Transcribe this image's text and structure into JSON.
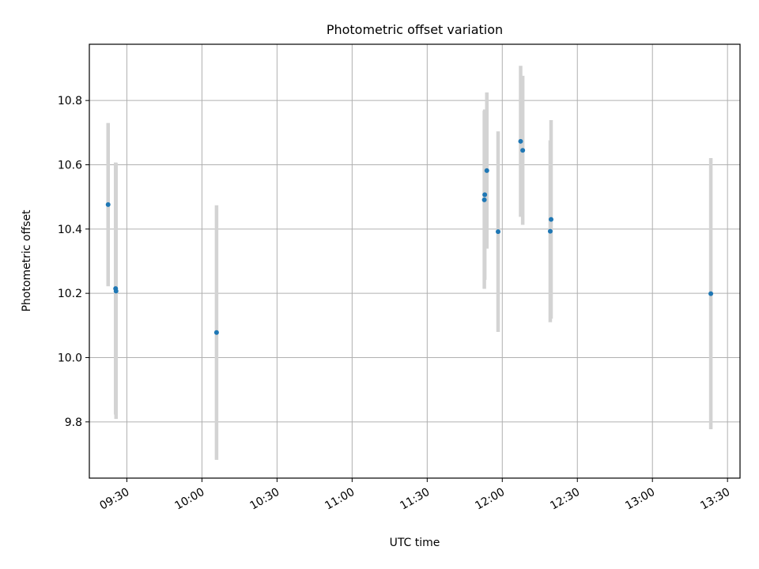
{
  "chart_data": {
    "type": "scatter",
    "title": "Photometric offset variation",
    "xlabel": "UTC time",
    "ylabel": "Photometric offset",
    "x_axis_kind": "time",
    "xlim": [
      "09:15",
      "13:35"
    ],
    "ylim": [
      9.625,
      10.975
    ],
    "grid": true,
    "x_ticks": [
      "09:30",
      "10:00",
      "10:30",
      "11:00",
      "11:30",
      "12:00",
      "12:30",
      "13:00",
      "13:30"
    ],
    "y_ticks": [
      9.8,
      10.0,
      10.2,
      10.4,
      10.6,
      10.8
    ],
    "y_tick_labels": [
      "9.8",
      "10.0",
      "10.2",
      "10.4",
      "10.6",
      "10.8"
    ],
    "colors": {
      "points": "#1f77b4",
      "errorbars": "#d3d3d3",
      "grid": "#b0b0b0"
    },
    "points": [
      {
        "x": "09:22:30",
        "y": 10.476,
        "yerr": 0.254
      },
      {
        "x": "09:25:30",
        "y": 10.215,
        "yerr": 0.392
      },
      {
        "x": "09:25:40",
        "y": 10.207,
        "yerr": 0.398
      },
      {
        "x": "10:05:50",
        "y": 10.078,
        "yerr": 0.396
      },
      {
        "x": "11:52:50",
        "y": 10.491,
        "yerr": 0.277
      },
      {
        "x": "11:53:00",
        "y": 10.507,
        "yerr": 0.265
      },
      {
        "x": "11:53:50",
        "y": 10.582,
        "yerr": 0.243
      },
      {
        "x": "11:58:20",
        "y": 10.392,
        "yerr": 0.312
      },
      {
        "x": "12:07:20",
        "y": 10.673,
        "yerr": 0.235
      },
      {
        "x": "12:08:10",
        "y": 10.645,
        "yerr": 0.232
      },
      {
        "x": "12:19:10",
        "y": 10.393,
        "yerr": 0.283
      },
      {
        "x": "12:19:30",
        "y": 10.43,
        "yerr": 0.309
      },
      {
        "x": "13:23:20",
        "y": 10.199,
        "yerr": 0.422
      }
    ]
  }
}
